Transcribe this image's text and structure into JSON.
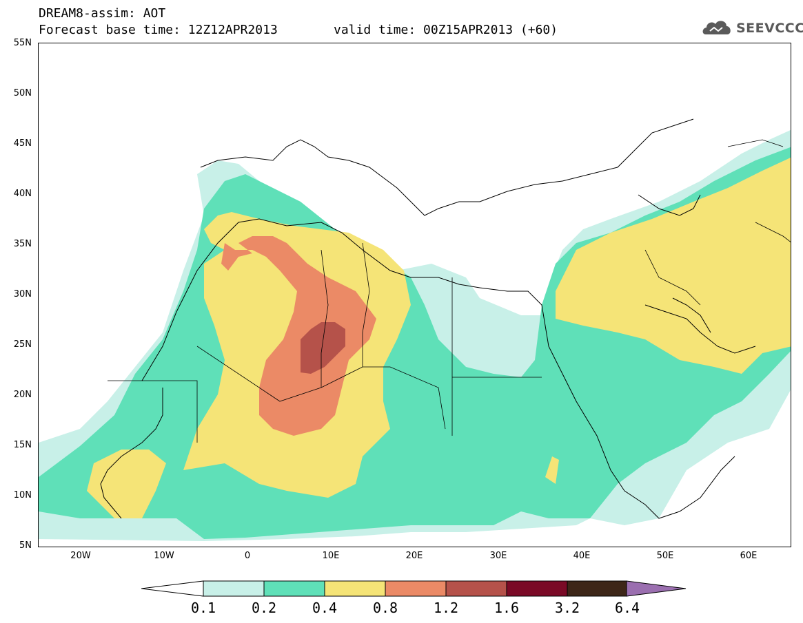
{
  "header": {
    "title_line1": "DREAM8-assim: AOT",
    "title_line2": "Forecast base time: 12Z12APR2013",
    "valid_time": "valid time: 00Z15APR2013 (+60)",
    "logo_text": "SEEVCCC"
  },
  "axes": {
    "lat_labels": [
      "55N",
      "50N",
      "45N",
      "40N",
      "35N",
      "30N",
      "25N",
      "20N",
      "15N",
      "10N",
      "5N"
    ],
    "lon_labels": [
      "20W",
      "10W",
      "0",
      "10E",
      "20E",
      "30E",
      "40E",
      "50E",
      "60E"
    ],
    "lon_range": [
      -25,
      65
    ],
    "lat_range": [
      5,
      55
    ]
  },
  "colorbar": {
    "labels": [
      "0.1",
      "0.2",
      "0.4",
      "0.8",
      "1.2",
      "1.6",
      "3.2",
      "6.4"
    ],
    "colors": [
      "#c8f0e8",
      "#5fe0b8",
      "#f5e477",
      "#eb8a66",
      "#b5524a",
      "#7a0a26",
      "#3d2618",
      "#9b6fb0"
    ],
    "under_color": "#ffffff"
  },
  "legend_meaning": "Aerosol Optical Thickness (AOT)",
  "colors": {
    "very_low": "#c8f0e8",
    "low": "#5fe0b8",
    "moderate": "#f5e477",
    "high": "#eb8a66",
    "very_high": "#b5524a"
  }
}
